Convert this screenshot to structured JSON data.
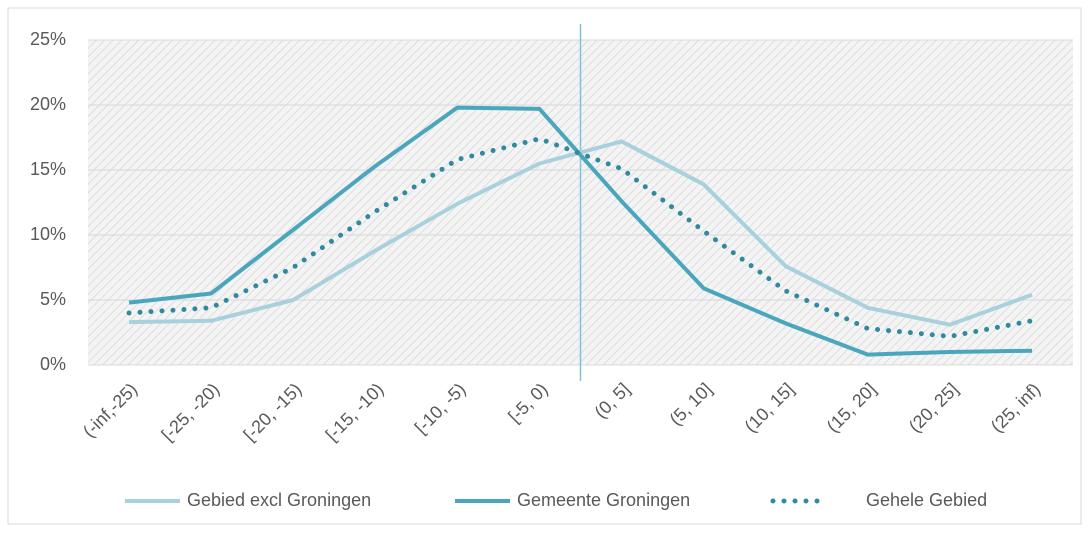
{
  "chart_data": {
    "type": "line",
    "categories": [
      "(-inf,-25)",
      "[-25, -20)",
      "[-20, -15)",
      "[-15, -10)",
      "[-10, -5)",
      "[-5, 0)",
      "(0, 5]",
      "(5, 10]",
      "(10, 15]",
      "(15, 20]",
      "(20, 25]",
      "(25, inf)"
    ],
    "series": [
      {
        "name": "Gebied excl Groningen",
        "color": "#a9d1dd",
        "dash": false,
        "values": [
          3.3,
          3.4,
          5.0,
          8.8,
          12.4,
          15.5,
          17.2,
          13.9,
          7.6,
          4.4,
          3.1,
          5.4
        ]
      },
      {
        "name": "Gemeente Groningen",
        "color": "#4aa6bd",
        "dash": false,
        "values": [
          4.8,
          5.5,
          10.4,
          15.3,
          19.8,
          19.7,
          12.6,
          5.9,
          3.2,
          0.8,
          1.0,
          1.1
        ]
      },
      {
        "name": "Gehele Gebied",
        "color": "#2f8a9f",
        "dash": true,
        "values": [
          4.0,
          4.4,
          7.5,
          11.8,
          15.8,
          17.4,
          15.1,
          10.3,
          5.7,
          2.8,
          2.2,
          3.4
        ]
      }
    ],
    "ylim": [
      0,
      25
    ],
    "yticks": [
      {
        "value": 0,
        "label": "0%"
      },
      {
        "value": 5,
        "label": "5%"
      },
      {
        "value": 10,
        "label": "10%"
      },
      {
        "value": 15,
        "label": "15%"
      },
      {
        "value": 20,
        "label": "20%"
      },
      {
        "value": 25,
        "label": "25%"
      }
    ],
    "grid": true,
    "legend": "bottom"
  }
}
